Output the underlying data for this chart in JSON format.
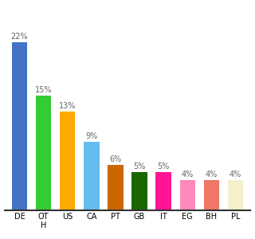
{
  "categories": [
    "DE",
    "OT\nH",
    "US",
    "CA",
    "PT",
    "GB",
    "IT",
    "EG",
    "BH",
    "PL"
  ],
  "values": [
    22,
    15,
    13,
    9,
    6,
    5,
    5,
    4,
    4,
    4
  ],
  "bar_colors": [
    "#4472c4",
    "#33cc33",
    "#ffaa00",
    "#66bbee",
    "#cc6600",
    "#1a6600",
    "#ff1493",
    "#ff88bb",
    "#ee7766",
    "#f5f0cc"
  ],
  "value_labels": [
    "22%",
    "15%",
    "13%",
    "9%",
    "6%",
    "5%",
    "5%",
    "4%",
    "4%",
    "4%"
  ],
  "ylim": [
    0,
    26
  ],
  "bg_color": "#ffffff",
  "label_fontsize": 7,
  "tick_fontsize": 7
}
